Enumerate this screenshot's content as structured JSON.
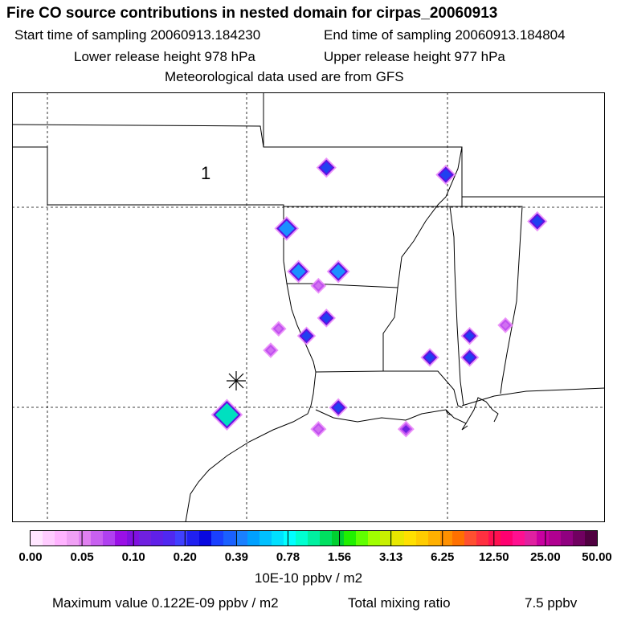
{
  "header": {
    "title": "Fire CO source contributions in nested domain for cirpas_20060913",
    "start_time": "Start time of sampling 20060913.184230",
    "end_time": "End time of sampling 20060913.184804",
    "lower_height": "Lower release height  978 hPa",
    "upper_height": "Upper release height  977 hPa",
    "met_data": "Meteorological data used are from GFS"
  },
  "map": {
    "region_label": "1",
    "receptor_icon": "asterisk-icon",
    "hotspots": [
      {
        "lon": -91.9,
        "lat": 36.6,
        "level": 0.2
      },
      {
        "lon": -88.9,
        "lat": 36.4,
        "level": 0.2
      },
      {
        "lon": -86.6,
        "lat": 35.1,
        "level": 0.2
      },
      {
        "lon": -92.9,
        "lat": 34.9,
        "level": 0.35
      },
      {
        "lon": -92.6,
        "lat": 33.7,
        "level": 0.3
      },
      {
        "lon": -91.6,
        "lat": 33.7,
        "level": 0.3
      },
      {
        "lon": -92.1,
        "lat": 33.3,
        "level": 0.05
      },
      {
        "lon": -91.9,
        "lat": 32.4,
        "level": 0.15
      },
      {
        "lon": -87.4,
        "lat": 32.2,
        "level": 0.05
      },
      {
        "lon": -92.4,
        "lat": 31.9,
        "level": 0.15
      },
      {
        "lon": -93.1,
        "lat": 32.1,
        "level": 0.04
      },
      {
        "lon": -88.3,
        "lat": 31.9,
        "level": 0.12
      },
      {
        "lon": -93.3,
        "lat": 31.5,
        "level": 0.04
      },
      {
        "lon": -89.3,
        "lat": 31.3,
        "level": 0.15
      },
      {
        "lon": -88.3,
        "lat": 31.3,
        "level": 0.15
      },
      {
        "lon": -94.4,
        "lat": 29.7,
        "level": 0.6
      },
      {
        "lon": -91.6,
        "lat": 29.9,
        "level": 0.15
      },
      {
        "lon": -92.1,
        "lat": 29.3,
        "level": 0.06
      },
      {
        "lon": -89.9,
        "lat": 29.3,
        "level": 0.08
      }
    ]
  },
  "colorbar": {
    "tick_labels": [
      "0.00",
      "0.05",
      "0.10",
      "0.20",
      "0.39",
      "0.78",
      "1.56",
      "3.13",
      "6.25",
      "12.50",
      "25.00",
      "50.00"
    ],
    "colors": [
      "#ffe6ff",
      "#ffccff",
      "#ffb3ff",
      "#f0a0f5",
      "#e080f0",
      "#c860f0",
      "#b040f0",
      "#9a10e6",
      "#8010e0",
      "#7020e0",
      "#6020e8",
      "#5028f0",
      "#4040ff",
      "#2020f0",
      "#0808e0",
      "#1a40ff",
      "#1a60ff",
      "#1a80ff",
      "#00a0ff",
      "#00c0ff",
      "#00e0ff",
      "#00ffff",
      "#00ffd0",
      "#00f0a0",
      "#00e060",
      "#00d030",
      "#20f000",
      "#60ff00",
      "#a0ff00",
      "#c8f000",
      "#e8e800",
      "#ffe000",
      "#ffcc00",
      "#ffb000",
      "#ff9000",
      "#ff7000",
      "#ff5030",
      "#ff3040",
      "#ff1050",
      "#ff0070",
      "#ff1090",
      "#e020a0",
      "#c800a0",
      "#b00090",
      "#900080",
      "#700060",
      "#500040"
    ],
    "units": "10E-10 ppbv / m2"
  },
  "footer": {
    "max_value": "Maximum value  0.122E-09 ppbv / m2",
    "total_label": "Total mixing ratio",
    "total_value": "7.5 ppbv"
  }
}
